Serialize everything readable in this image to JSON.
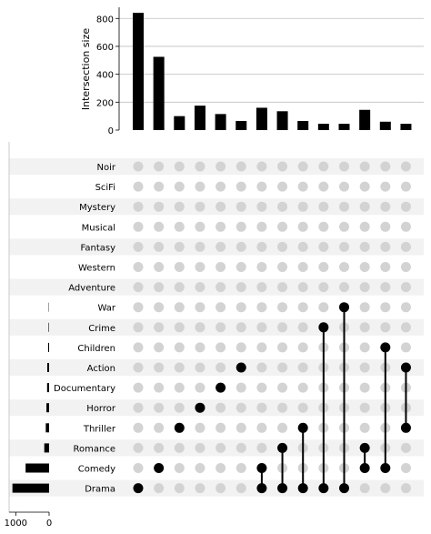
{
  "chart_data": {
    "type": "upset",
    "ylabel": "Intersection size",
    "yticks": [
      0,
      200,
      400,
      600,
      800
    ],
    "ylim": [
      0,
      880
    ],
    "set_size_ticks": [
      1000,
      0
    ],
    "set_size_lim": [
      0,
      1200
    ],
    "sets": [
      "Noir",
      "SciFi",
      "Mystery",
      "Musical",
      "Fantasy",
      "Western",
      "Adventure",
      "War",
      "Crime",
      "Children",
      "Action",
      "Documentary",
      "Horror",
      "Thriller",
      "Romance",
      "Comedy",
      "Drama"
    ],
    "set_sizes": [
      0,
      0,
      0,
      0,
      0,
      0,
      0,
      10,
      15,
      30,
      55,
      60,
      80,
      100,
      145,
      705,
      1100
    ],
    "intersections": [
      {
        "sets": [
          "Drama"
        ],
        "size": 840
      },
      {
        "sets": [
          "Comedy"
        ],
        "size": 525
      },
      {
        "sets": [
          "Thriller"
        ],
        "size": 100
      },
      {
        "sets": [
          "Horror"
        ],
        "size": 175
      },
      {
        "sets": [
          "Documentary"
        ],
        "size": 115
      },
      {
        "sets": [
          "Action"
        ],
        "size": 65
      },
      {
        "sets": [
          "Comedy",
          "Drama"
        ],
        "size": 160
      },
      {
        "sets": [
          "Romance",
          "Drama"
        ],
        "size": 135
      },
      {
        "sets": [
          "Thriller",
          "Drama"
        ],
        "size": 65
      },
      {
        "sets": [
          "Crime",
          "Drama"
        ],
        "size": 45
      },
      {
        "sets": [
          "War",
          "Drama"
        ],
        "size": 45
      },
      {
        "sets": [
          "Romance",
          "Comedy"
        ],
        "size": 145
      },
      {
        "sets": [
          "Children",
          "Comedy"
        ],
        "size": 60
      },
      {
        "sets": [
          "Action",
          "Thriller"
        ],
        "size": 45
      }
    ]
  }
}
